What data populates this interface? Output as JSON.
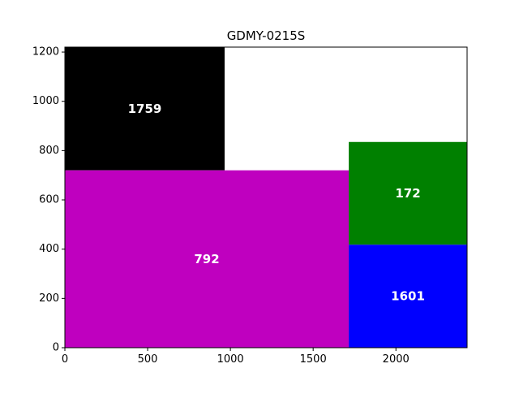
{
  "chart_data": {
    "type": "treemap",
    "title": "GDMY-0215S",
    "xlabel": "",
    "ylabel": "",
    "xlim": [
      0,
      2430
    ],
    "ylim": [
      0,
      1220
    ],
    "xticks": [
      0,
      500,
      1000,
      1500,
      2000
    ],
    "yticks": [
      0,
      200,
      400,
      600,
      800,
      1000,
      1200
    ],
    "grid": false,
    "legend": "none",
    "rects": [
      {
        "label": "1759",
        "x0": 0,
        "y0": 720,
        "x1": 965,
        "y1": 1220,
        "color": "#000000"
      },
      {
        "label": "792",
        "x0": 0,
        "y0": 0,
        "x1": 1715,
        "y1": 720,
        "color": "#bf00bf"
      },
      {
        "label": "172",
        "x0": 1715,
        "y0": 418,
        "x1": 2430,
        "y1": 835,
        "color": "#008000"
      },
      {
        "label": "1601",
        "x0": 1715,
        "y0": 0,
        "x1": 2430,
        "y1": 418,
        "color": "#0000ff"
      }
    ]
  }
}
